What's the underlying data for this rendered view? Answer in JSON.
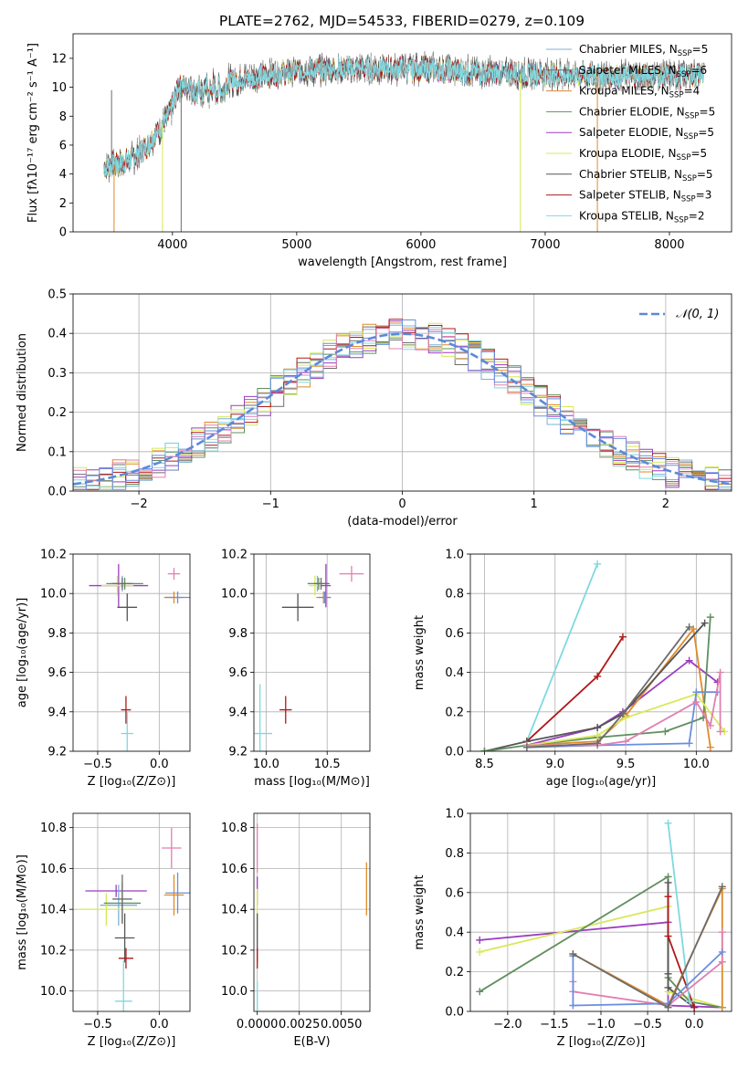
{
  "figure": {
    "title": "PLATE=2762, MJD=54533, FIBERID=0279, z=0.109"
  },
  "colors": {
    "chabrier_miles": "#7fb0d6",
    "salpeter_miles": "#6c6c6c",
    "kroupa_miles": "#e08a2a",
    "chabrier_elodie": "#5f8f5f",
    "salpeter_elodie": "#9b3cc0",
    "kroupa_elodie": "#d8e85a",
    "chabrier_stelib": "#555555",
    "salpeter_stelib": "#b01818",
    "kroupa_stelib": "#80d8e0",
    "pink": "#e080b0",
    "blue": "#6a8ee0",
    "normal_curve": "#5b8ad8"
  },
  "chart_data": [
    {
      "id": "spectrum",
      "type": "line",
      "title": "PLATE=2762, MJD=54533, FIBERID=0279, z=0.109",
      "xlabel": "wavelength [Angstrom, rest frame]",
      "ylabel": "Flux [fλ10⁻¹⁷ erg cm⁻² s⁻¹ A⁻¹]",
      "xlim": [
        3200,
        8500
      ],
      "ylim": [
        0,
        13.7
      ],
      "xticks": [
        4000,
        5000,
        6000,
        7000,
        8000
      ],
      "yticks": [
        0,
        2,
        4,
        6,
        8,
        10,
        12
      ],
      "grid": false,
      "legend_position": "upper-right",
      "continuum": {
        "x": [
          3450,
          3600,
          3700,
          3800,
          3900,
          3980,
          4050,
          4200,
          4400,
          4600,
          4800,
          5000,
          5200,
          5500,
          6000,
          6500,
          7000,
          7500,
          8000,
          8280
        ],
        "y": [
          4.5,
          4.8,
          5.2,
          6.0,
          7.2,
          8.2,
          10.0,
          10.2,
          10.4,
          10.6,
          10.9,
          11.1,
          11.2,
          11.3,
          11.3,
          11.0,
          10.9,
          10.8,
          10.8,
          10.9
        ]
      },
      "series": [
        {
          "name": "Chabrier MILES, N_SSP=5",
          "label_main": "Chabrier MILES, N",
          "label_sub": "SSP",
          "label_tail": "=5",
          "color_key": "chabrier_miles"
        },
        {
          "name": "Salpeter MILES, N_SSP=6",
          "label_main": "Salpeter MILES, N",
          "label_sub": "SSP",
          "label_tail": "=6",
          "color_key": "salpeter_miles"
        },
        {
          "name": "Kroupa MILES, N_SSP=4",
          "label_main": "Kroupa MILES, N",
          "label_sub": "SSP",
          "label_tail": "=4",
          "color_key": "kroupa_miles"
        },
        {
          "name": "Chabrier ELODIE, N_SSP=5",
          "label_main": "Chabrier ELODIE, N",
          "label_sub": "SSP",
          "label_tail": "=5",
          "color_key": "chabrier_elodie"
        },
        {
          "name": "Salpeter ELODIE, N_SSP=5",
          "label_main": "Salpeter ELODIE, N",
          "label_sub": "SSP",
          "label_tail": "=5",
          "color_key": "salpeter_elodie"
        },
        {
          "name": "Kroupa ELODIE, N_SSP=5",
          "label_main": "Kroupa ELODIE, N",
          "label_sub": "SSP",
          "label_tail": "=5",
          "color_key": "kroupa_elodie"
        },
        {
          "name": "Chabrier STELIB, N_SSP=5",
          "label_main": "Chabrier STELIB, N",
          "label_sub": "SSP",
          "label_tail": "=5",
          "color_key": "chabrier_stelib"
        },
        {
          "name": "Salpeter STELIB, N_SSP=3",
          "label_main": "Salpeter STELIB, N",
          "label_sub": "SSP",
          "label_tail": "=3",
          "color_key": "salpeter_stelib"
        },
        {
          "name": "Kroupa STELIB, N_SSP=2",
          "label_main": "Kroupa STELIB, N",
          "label_sub": "SSP",
          "label_tail": "=2",
          "color_key": "kroupa_stelib"
        }
      ],
      "spikes": [
        {
          "x": 3510,
          "color_key": "salpeter_miles",
          "y": 9.8
        },
        {
          "x": 3530,
          "color_key": "kroupa_miles",
          "y": 0.0
        },
        {
          "x": 3920,
          "color_key": "kroupa_elodie",
          "y": 0.0
        },
        {
          "x": 4070,
          "color_key": "salpeter_miles",
          "y": 0.0
        },
        {
          "x": 6800,
          "color_key": "kroupa_elodie",
          "y": 0.0
        },
        {
          "x": 7420,
          "color_key": "kroupa_miles",
          "y": 0.0
        }
      ]
    },
    {
      "id": "residuals",
      "type": "line",
      "xlabel": "(data-model)/error",
      "ylabel": "Normed distribution",
      "xlim": [
        -2.5,
        2.5
      ],
      "ylim": [
        0,
        0.5
      ],
      "xticks": [
        -2,
        -1,
        0,
        1,
        2
      ],
      "yticks": [
        0.0,
        0.1,
        0.2,
        0.3,
        0.4,
        0.5
      ],
      "grid": true,
      "legend_position": "upper-right",
      "legend": "𝒩(0, 1)",
      "normal": {
        "mean": 0,
        "sigma": 1
      }
    },
    {
      "id": "age-vs-Z",
      "type": "scatter",
      "xlabel": "Z [log₁₀(Z/Z⊙)]",
      "ylabel": "age  [log₁₀(age/yr)]",
      "xlim": [
        -0.7,
        0.25
      ],
      "ylim": [
        9.2,
        10.2
      ],
      "xticks": [
        -0.5,
        0.0
      ],
      "yticks": [
        9.2,
        9.4,
        9.6,
        9.8,
        10.0,
        10.2
      ],
      "grid": true,
      "points": [
        {
          "x": -0.33,
          "y": 10.04,
          "xerr": 0.24,
          "yerr": 0.11,
          "color_key": "salpeter_elodie"
        },
        {
          "x": -0.3,
          "y": 10.05,
          "xerr": 0.1,
          "yerr": 0.04,
          "color_key": "chabrier_miles"
        },
        {
          "x": -0.34,
          "y": 10.04,
          "xerr": 0.13,
          "yerr": 0.05,
          "color_key": "kroupa_elodie"
        },
        {
          "x": -0.28,
          "y": 10.05,
          "xerr": 0.15,
          "yerr": 0.03,
          "color_key": "chabrier_elodie"
        },
        {
          "x": -0.3,
          "y": 10.05,
          "xerr": 0.08,
          "yerr": 0.03,
          "color_key": "salpeter_miles"
        },
        {
          "x": -0.26,
          "y": 9.93,
          "xerr": 0.08,
          "yerr": 0.07,
          "color_key": "chabrier_stelib"
        },
        {
          "x": 0.12,
          "y": 9.98,
          "xerr": 0.08,
          "yerr": 0.03,
          "color_key": "kroupa_miles"
        },
        {
          "x": 0.15,
          "y": 9.98,
          "xerr": 0.1,
          "yerr": 0.03,
          "color_key": "blue"
        },
        {
          "x": 0.12,
          "y": 10.1,
          "xerr": 0.05,
          "yerr": 0.03,
          "color_key": "pink"
        },
        {
          "x": -0.27,
          "y": 9.41,
          "xerr": 0.04,
          "yerr": 0.07,
          "color_key": "salpeter_stelib"
        },
        {
          "x": -0.26,
          "y": 9.29,
          "xerr": 0.05,
          "yerr": 0.11,
          "color_key": "kroupa_stelib"
        }
      ]
    },
    {
      "id": "age-vs-mass",
      "type": "scatter",
      "xlabel": "mass [log₁₀(M/M⊙)]",
      "xlim": [
        9.9,
        10.85
      ],
      "ylim": [
        9.2,
        10.2
      ],
      "xticks": [
        10.0,
        10.5
      ],
      "yticks": [
        9.2,
        9.4,
        9.6,
        9.8,
        10.0,
        10.2
      ],
      "grid": true,
      "points": [
        {
          "x": 10.49,
          "y": 10.04,
          "xerr": 0.04,
          "yerr": 0.11,
          "color_key": "salpeter_elodie"
        },
        {
          "x": 10.42,
          "y": 10.05,
          "xerr": 0.08,
          "yerr": 0.04,
          "color_key": "chabrier_miles"
        },
        {
          "x": 10.4,
          "y": 10.04,
          "xerr": 0.05,
          "yerr": 0.05,
          "color_key": "kroupa_elodie"
        },
        {
          "x": 10.43,
          "y": 10.05,
          "xerr": 0.09,
          "yerr": 0.03,
          "color_key": "chabrier_elodie"
        },
        {
          "x": 10.45,
          "y": 10.05,
          "xerr": 0.06,
          "yerr": 0.03,
          "color_key": "salpeter_miles"
        },
        {
          "x": 10.26,
          "y": 9.93,
          "xerr": 0.13,
          "yerr": 0.07,
          "color_key": "chabrier_stelib"
        },
        {
          "x": 10.47,
          "y": 9.98,
          "xerr": 0.06,
          "yerr": 0.03,
          "color_key": "kroupa_miles"
        },
        {
          "x": 10.48,
          "y": 9.98,
          "xerr": 0.05,
          "yerr": 0.03,
          "color_key": "blue"
        },
        {
          "x": 10.7,
          "y": 10.1,
          "xerr": 0.1,
          "yerr": 0.04,
          "color_key": "pink"
        },
        {
          "x": 10.16,
          "y": 9.41,
          "xerr": 0.05,
          "yerr": 0.07,
          "color_key": "salpeter_stelib"
        },
        {
          "x": 9.95,
          "y": 9.29,
          "xerr": 0.1,
          "yerr": 0.25,
          "color_key": "kroupa_stelib"
        }
      ]
    },
    {
      "id": "weight-vs-age",
      "type": "line",
      "xlabel": "age  [log₁₀(age/yr)]",
      "ylabel": "mass weight",
      "xlim": [
        8.4,
        10.25
      ],
      "ylim": [
        0,
        1.0
      ],
      "xticks": [
        8.5,
        9.0,
        9.5,
        10.0
      ],
      "yticks": [
        0.0,
        0.2,
        0.4,
        0.6,
        0.8,
        1.0
      ],
      "grid": true,
      "series": [
        {
          "color_key": "kroupa_stelib",
          "x": [
            8.8,
            9.3
          ],
          "y": [
            0.05,
            0.95
          ]
        },
        {
          "color_key": "salpeter_stelib",
          "x": [
            8.8,
            9.3,
            9.48
          ],
          "y": [
            0.05,
            0.38,
            0.58
          ]
        },
        {
          "color_key": "salpeter_elodie",
          "x": [
            8.8,
            9.3,
            9.48,
            9.95,
            10.15
          ],
          "y": [
            0.03,
            0.12,
            0.2,
            0.46,
            0.35
          ]
        },
        {
          "color_key": "kroupa_miles",
          "x": [
            8.8,
            9.3,
            9.5,
            9.98,
            10.1
          ],
          "y": [
            0.03,
            0.05,
            0.18,
            0.62,
            0.02
          ]
        },
        {
          "color_key": "chabrier_stelib",
          "x": [
            8.5,
            8.8,
            9.3,
            9.48,
            10.06
          ],
          "y": [
            0.0,
            0.05,
            0.12,
            0.19,
            0.65
          ]
        },
        {
          "color_key": "chabrier_elodie",
          "x": [
            8.5,
            8.8,
            9.3,
            9.78,
            10.05,
            10.1
          ],
          "y": [
            0.0,
            0.03,
            0.07,
            0.1,
            0.17,
            0.68
          ]
        },
        {
          "color_key": "kroupa_elodie",
          "x": [
            8.8,
            9.3,
            9.5,
            10.0,
            10.2
          ],
          "y": [
            0.03,
            0.08,
            0.17,
            0.29,
            0.1
          ]
        },
        {
          "color_key": "blue",
          "x": [
            8.8,
            9.3,
            9.95,
            10.0,
            10.15
          ],
          "y": [
            0.02,
            0.03,
            0.04,
            0.3,
            0.3
          ]
        },
        {
          "color_key": "pink",
          "x": [
            8.8,
            9.3,
            9.5,
            10.0,
            10.1,
            10.17,
            10.17
          ],
          "y": [
            0.03,
            0.03,
            0.05,
            0.25,
            0.13,
            0.4,
            0.1
          ]
        },
        {
          "color_key": "salpeter_miles",
          "x": [
            8.8,
            9.3,
            9.48,
            9.95
          ],
          "y": [
            0.02,
            0.04,
            0.19,
            0.63
          ]
        }
      ]
    },
    {
      "id": "mass-vs-Z",
      "type": "scatter",
      "xlabel": "Z [log₁₀(Z/Z⊙)]",
      "ylabel": "mass [log₁₀(M/M⊙)]",
      "xlim": [
        -0.7,
        0.25
      ],
      "ylim": [
        9.9,
        10.87
      ],
      "xticks": [
        -0.5,
        0.0
      ],
      "yticks": [
        10.0,
        10.2,
        10.4,
        10.6,
        10.8
      ],
      "grid": true,
      "points": [
        {
          "x": -0.35,
          "y": 10.49,
          "xerr": 0.25,
          "yerr": 0.03,
          "color_key": "salpeter_elodie"
        },
        {
          "x": -0.33,
          "y": 10.42,
          "xerr": 0.15,
          "yerr": 0.1,
          "color_key": "chabrier_miles"
        },
        {
          "x": -0.43,
          "y": 10.4,
          "xerr": 0.23,
          "yerr": 0.08,
          "color_key": "kroupa_elodie"
        },
        {
          "x": -0.3,
          "y": 10.43,
          "xerr": 0.15,
          "yerr": 0.1,
          "color_key": "chabrier_elodie"
        },
        {
          "x": -0.3,
          "y": 10.45,
          "xerr": 0.08,
          "yerr": 0.12,
          "color_key": "salpeter_miles"
        },
        {
          "x": -0.28,
          "y": 10.26,
          "xerr": 0.08,
          "yerr": 0.12,
          "color_key": "chabrier_stelib"
        },
        {
          "x": 0.12,
          "y": 10.47,
          "xerr": 0.08,
          "yerr": 0.1,
          "color_key": "kroupa_miles"
        },
        {
          "x": 0.15,
          "y": 10.48,
          "xerr": 0.1,
          "yerr": 0.1,
          "color_key": "blue"
        },
        {
          "x": 0.1,
          "y": 10.7,
          "xerr": 0.08,
          "yerr": 0.1,
          "color_key": "pink"
        },
        {
          "x": -0.27,
          "y": 10.16,
          "xerr": 0.06,
          "yerr": 0.05,
          "color_key": "salpeter_stelib"
        },
        {
          "x": -0.29,
          "y": 9.95,
          "xerr": 0.07,
          "yerr": 0.2,
          "color_key": "kroupa_stelib"
        }
      ]
    },
    {
      "id": "mass-vs-EBV",
      "type": "scatter",
      "xlabel": "E(B-V)",
      "xlim": [
        -0.0002,
        0.0067
      ],
      "ylim": [
        9.9,
        10.87
      ],
      "xticks": [
        0.0,
        0.0025,
        0.005
      ],
      "xticklabels": [
        "0.0000",
        "0.0025",
        "0.0050"
      ],
      "yticks": [
        10.0,
        10.2,
        10.4,
        10.6,
        10.8
      ],
      "grid": true,
      "points": [
        {
          "x": 0.0,
          "y": 10.7,
          "xerr": 0,
          "yerr": 0.12,
          "color_key": "pink"
        },
        {
          "x": 0.0,
          "y": 10.49,
          "xerr": 0,
          "yerr": 0.07,
          "color_key": "salpeter_elodie"
        },
        {
          "x": 0.0,
          "y": 10.4,
          "xerr": 0,
          "yerr": 0.1,
          "color_key": "kroupa_elodie"
        },
        {
          "x": 0.0,
          "y": 10.26,
          "xerr": 0,
          "yerr": 0.12,
          "color_key": "chabrier_stelib"
        },
        {
          "x": 0.0,
          "y": 10.16,
          "xerr": 0,
          "yerr": 0.05,
          "color_key": "salpeter_stelib"
        },
        {
          "x": 0.0,
          "y": 9.95,
          "xerr": 0,
          "yerr": 0.1,
          "color_key": "kroupa_stelib"
        },
        {
          "x": 0.0065,
          "y": 10.5,
          "xerr": 0,
          "yerr": 0.13,
          "color_key": "kroupa_miles"
        }
      ]
    },
    {
      "id": "weight-vs-Z",
      "type": "line",
      "xlabel": "Z [log₁₀(Z/Z⊙)]",
      "ylabel": "mass weight",
      "xlim": [
        -2.4,
        0.4
      ],
      "ylim": [
        0,
        1.0
      ],
      "xticks": [
        -2.0,
        -1.5,
        -1.0,
        -0.5,
        0.0
      ],
      "yticks": [
        0.0,
        0.2,
        0.4,
        0.6,
        0.8,
        1.0
      ],
      "grid": true,
      "series": [
        {
          "color_key": "salpeter_elodie",
          "x": [
            -2.3,
            -0.28,
            -0.28,
            0.3
          ],
          "y": [
            0.36,
            0.45,
            0.03,
            0.02
          ]
        },
        {
          "color_key": "kroupa_elodie",
          "x": [
            -2.3,
            -0.28,
            -0.28,
            0.3
          ],
          "y": [
            0.3,
            0.53,
            0.1,
            0.02
          ]
        },
        {
          "color_key": "chabrier_elodie",
          "x": [
            -2.3,
            -0.28,
            -0.28,
            -0.05,
            0.3
          ],
          "y": [
            0.1,
            0.68,
            0.17,
            0.05,
            0.02
          ]
        },
        {
          "color_key": "chabrier_stelib",
          "x": [
            -0.28,
            -0.28,
            -0.28,
            0.0
          ],
          "y": [
            0.65,
            0.19,
            0.12,
            0.02
          ]
        },
        {
          "color_key": "salpeter_stelib",
          "x": [
            -0.28,
            -0.28,
            0.0
          ],
          "y": [
            0.58,
            0.38,
            0.02
          ]
        },
        {
          "color_key": "kroupa_stelib",
          "x": [
            -0.28,
            -0.05
          ],
          "y": [
            0.95,
            0.05
          ]
        },
        {
          "color_key": "kroupa_miles",
          "x": [
            -1.3,
            -0.28,
            0.3,
            0.3
          ],
          "y": [
            0.29,
            0.03,
            0.62,
            0.02
          ]
        },
        {
          "color_key": "pink",
          "x": [
            -1.3,
            -1.3,
            -0.28,
            0.3,
            0.3
          ],
          "y": [
            0.15,
            0.1,
            0.03,
            0.25,
            0.4
          ]
        },
        {
          "color_key": "blue",
          "x": [
            -1.3,
            -1.3,
            -0.28,
            0.3
          ],
          "y": [
            0.28,
            0.03,
            0.04,
            0.3
          ]
        },
        {
          "color_key": "salpeter_miles",
          "x": [
            -1.3,
            -0.28,
            0.3
          ],
          "y": [
            0.29,
            0.02,
            0.63
          ]
        }
      ]
    }
  ]
}
